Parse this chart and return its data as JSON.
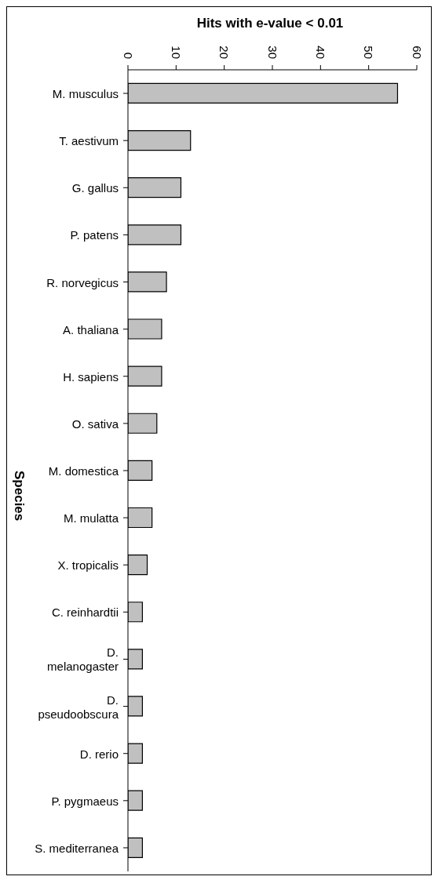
{
  "chart_data": {
    "type": "bar",
    "orientation": "horizontal",
    "xlabel": "Hits with e-value < 0.01",
    "ylabel": "Species",
    "categories": [
      "M. musculus",
      "T. aestivum",
      "G. gallus",
      "P. patens",
      "R. norvegicus",
      "A. thaliana",
      "H. sapiens",
      "O. sativa",
      "M. domestica",
      "M. mulatta",
      "X. tropicalis",
      "C. reinhardtii",
      "D. melanogaster",
      "D. pseudoobscura",
      "D. rerio",
      "P. pygmaeus",
      "S. mediterranea"
    ],
    "values": [
      56,
      13,
      11,
      11,
      8,
      7,
      7,
      6,
      5,
      5,
      4,
      3,
      3,
      3,
      3,
      3,
      3
    ],
    "color": "#c0c0c0",
    "xlim": [
      0,
      60
    ],
    "xticks": [
      0,
      10,
      20,
      30,
      40,
      50,
      60
    ]
  }
}
